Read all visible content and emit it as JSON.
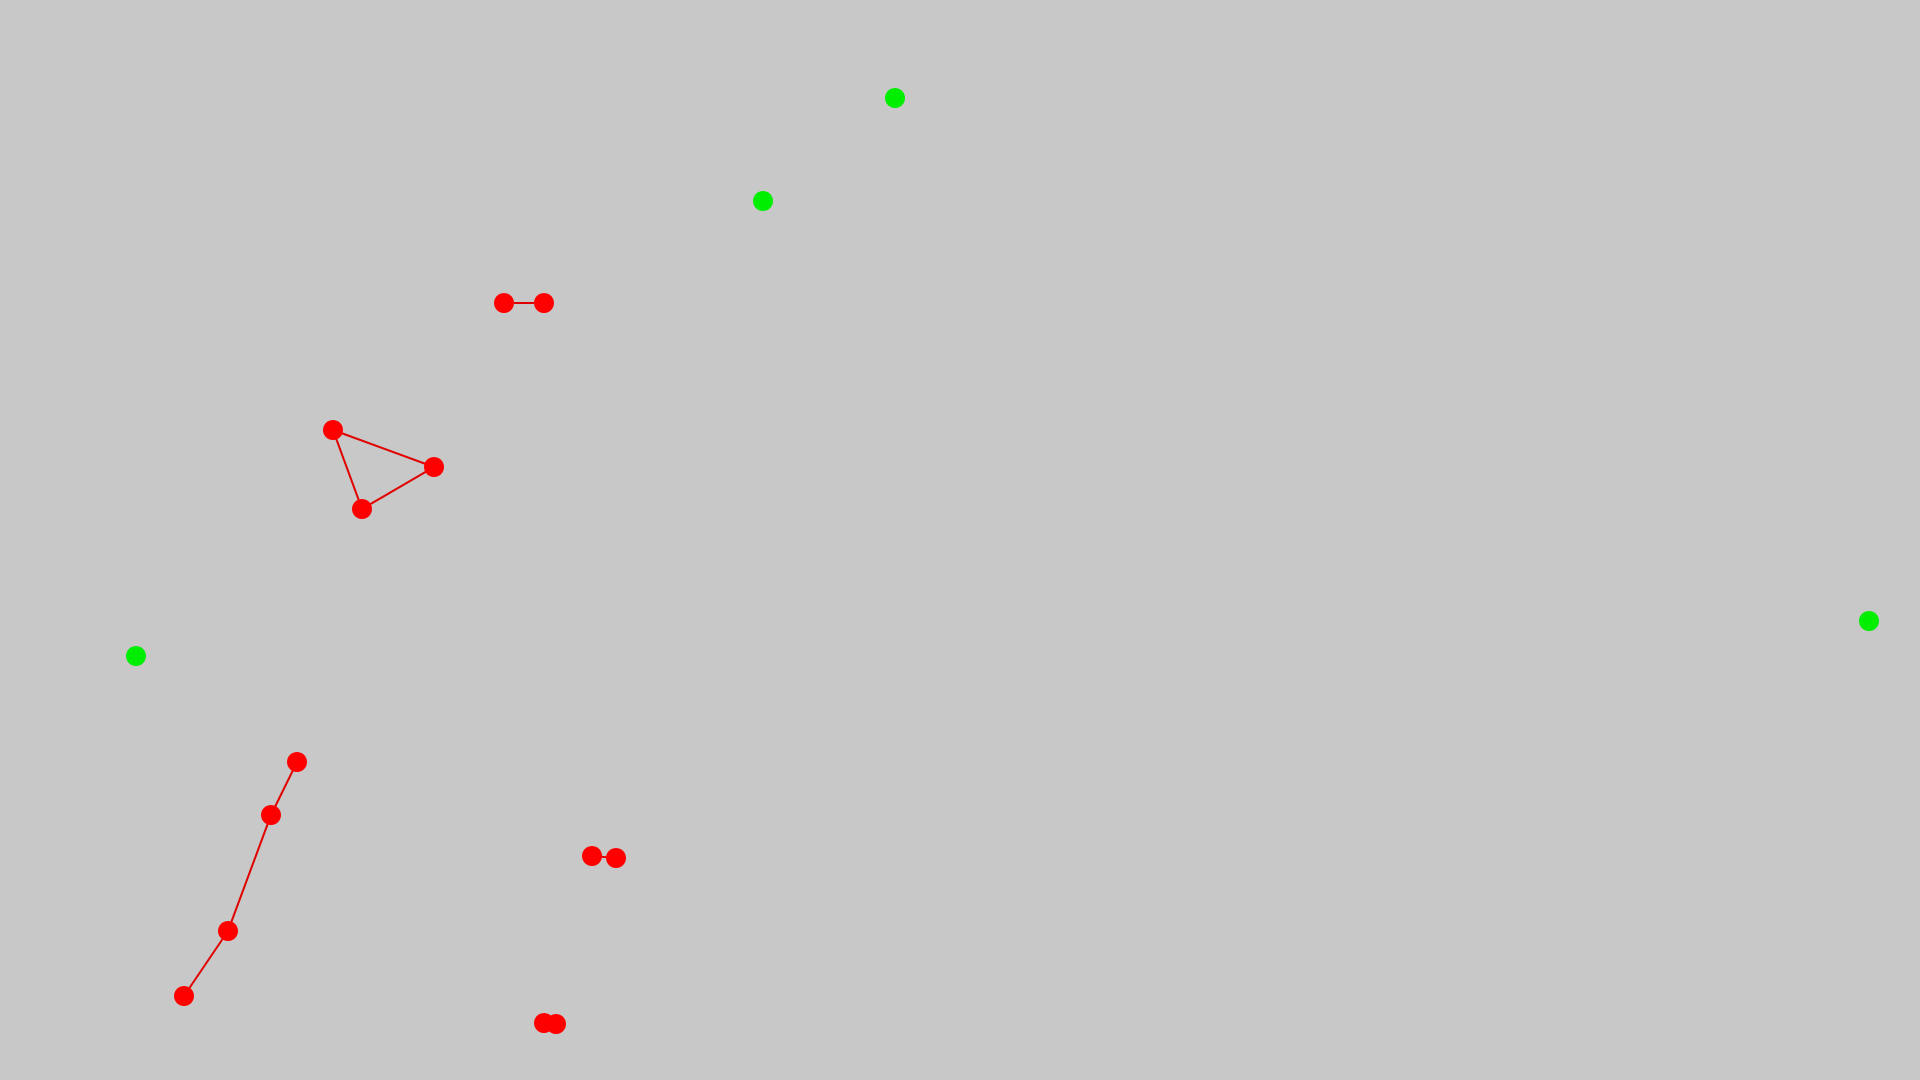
{
  "colors": {
    "background": "#c8c8c8",
    "node_linked": "#ff0000",
    "edge": "#e00000",
    "node_free": "#00ee00"
  },
  "free_nodes": [
    {
      "id": "g1"
    },
    {
      "id": "g2"
    },
    {
      "id": "g3"
    },
    {
      "id": "g4"
    }
  ],
  "groups": [
    {
      "id": "pair-top",
      "nodes": [
        "r1",
        "r2"
      ],
      "edges": [
        [
          "r1",
          "r2"
        ]
      ]
    },
    {
      "id": "triangle",
      "nodes": [
        "r3",
        "r4",
        "r5"
      ],
      "edges": [
        [
          "r3",
          "r4"
        ],
        [
          "r4",
          "r5"
        ],
        [
          "r5",
          "r3"
        ]
      ]
    },
    {
      "id": "chain",
      "nodes": [
        "r6",
        "r7",
        "r8",
        "r9"
      ],
      "edges": [
        [
          "r6",
          "r7"
        ],
        [
          "r7",
          "r8"
        ],
        [
          "r8",
          "r9"
        ]
      ]
    },
    {
      "id": "pair-mid",
      "nodes": [
        "r10",
        "r11"
      ],
      "edges": [
        [
          "r10",
          "r11"
        ]
      ]
    },
    {
      "id": "pair-bottom",
      "nodes": [
        "r12",
        "r13"
      ],
      "edges": [
        [
          "r12",
          "r13"
        ]
      ]
    }
  ]
}
